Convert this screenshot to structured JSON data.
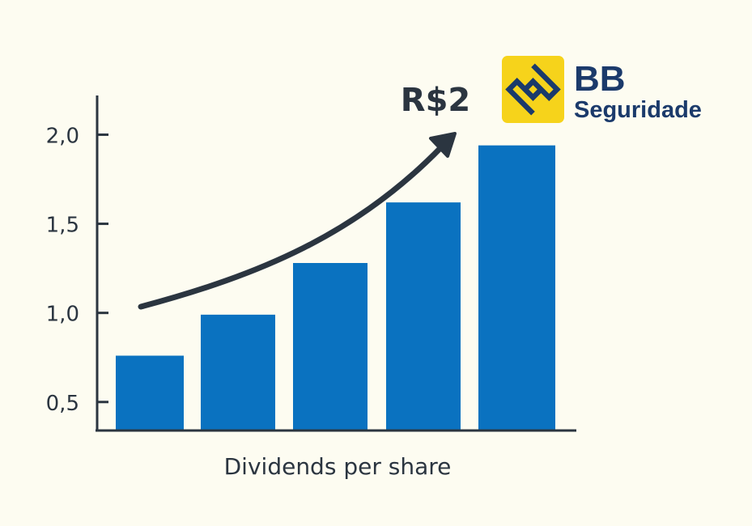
{
  "chart_data": {
    "type": "bar",
    "categories": [
      "",
      "",
      "",
      "",
      ""
    ],
    "values": [
      0.76,
      0.99,
      1.28,
      1.62,
      1.94
    ],
    "title": "",
    "xlabel": "Dividends per share",
    "ylabel": "",
    "ylim": [
      0.34,
      2.22
    ],
    "yticks": [
      0.5,
      1.0,
      1.5,
      2.0
    ],
    "ytick_labels": [
      "0,5",
      "1,0",
      "1,5",
      "2,0"
    ],
    "grid": false,
    "annotation": "R$2",
    "trend_arrow": "upward curved arrow",
    "colors": {
      "bar": "#0a72c0",
      "axis": "#2b3540",
      "text": "#2b3540",
      "background": "#fdfcf1",
      "logo_yellow": "#f6d31b",
      "logo_blue": "#1b3a6b"
    }
  },
  "logo": {
    "line1": "BB",
    "line2": "Seguridade",
    "icon": "banco-do-brasil-logo-icon"
  }
}
